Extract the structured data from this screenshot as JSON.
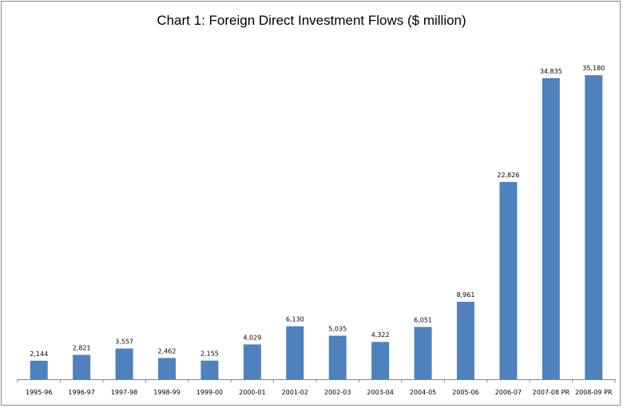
{
  "chart_data": {
    "type": "bar",
    "title": "Chart 1: Foreign Direct Investment Flows ($ million)",
    "categories": [
      "1995-96",
      "1996-97",
      "1997-98",
      "1998-99",
      "1999-00",
      "2000-01",
      "2001-02",
      "2002-03",
      "2003-04",
      "2004-05",
      "2005-06",
      "2006-07",
      "2007-08 PR",
      "2008-09 PR"
    ],
    "values": [
      2144,
      2821,
      3557,
      2462,
      2155,
      4029,
      6130,
      5035,
      4322,
      6051,
      8961,
      22826,
      34835,
      35180
    ],
    "value_labels": [
      "2,144",
      "2,821",
      "3,557",
      "2,462",
      "2,155",
      "4,029",
      "6,130",
      "5,035",
      "4,322",
      "6,051",
      "8,961",
      "22,826",
      "34,835",
      "35,180"
    ],
    "xlabel": "",
    "ylabel": "",
    "ylim": [
      0,
      40000
    ],
    "grid": false,
    "legend": "none",
    "bar_color": "#4f81bd",
    "axis_color": "#868686"
  }
}
